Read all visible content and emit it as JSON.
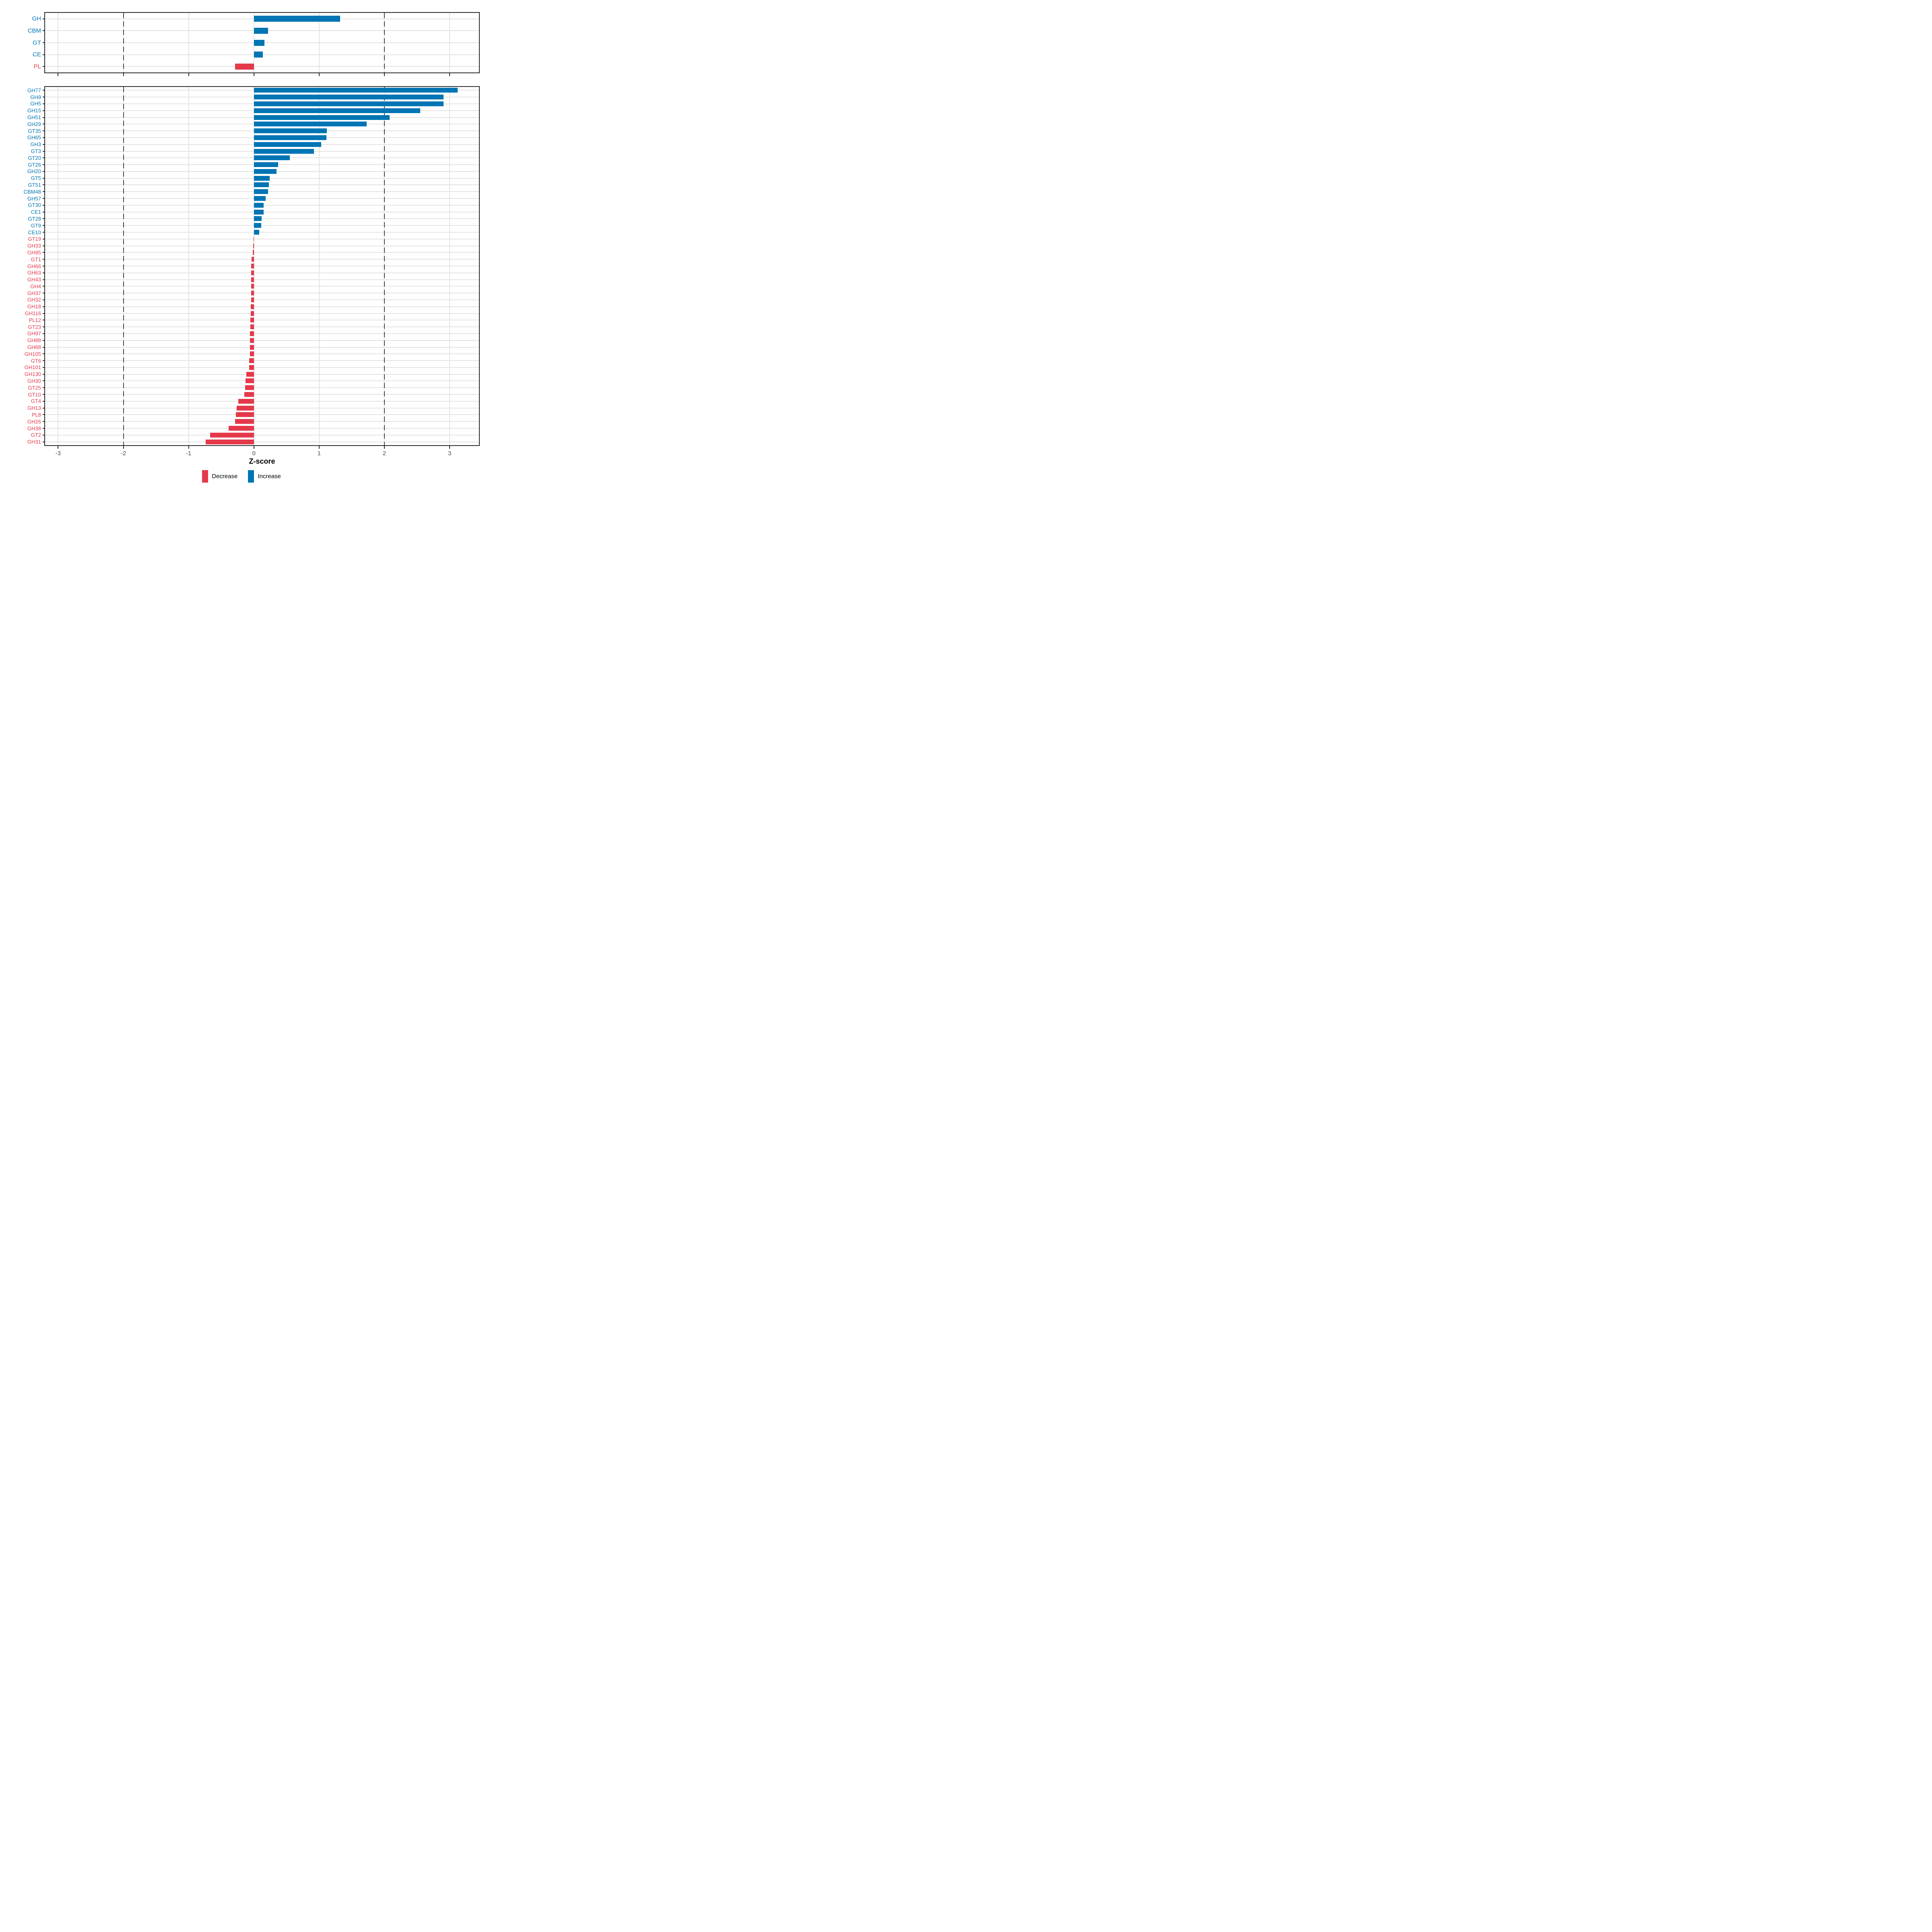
{
  "figure": {
    "xlabel": "Z-score",
    "axis": {
      "min": -3.2,
      "max": 3.45,
      "ticks": [
        -3,
        -2,
        -1,
        0,
        1,
        2,
        3
      ],
      "dashed_ticks": [
        -2,
        2
      ],
      "grid": "on"
    },
    "legend": {
      "position": "bottom-center",
      "items": [
        {
          "label": "Decrease",
          "color": "#e4394b"
        },
        {
          "label": "Increase",
          "color": "#0075b4"
        }
      ]
    },
    "colors": {
      "increase": "#0075b4",
      "decrease": "#e4394b",
      "grid": "#e4e4e4",
      "dashed_line": "#474747",
      "tick_text": "#4d4d4d",
      "panel_border": "#2b2b2b"
    }
  },
  "chart_data": [
    {
      "type": "bar",
      "orientation": "horizontal",
      "title": "",
      "xlabel": "Z-score",
      "ylabel": "",
      "xlim": [
        -3.2,
        3.45
      ],
      "categories": [
        "GH",
        "CBM",
        "GT",
        "CE",
        "PL"
      ],
      "values": [
        1.32,
        0.22,
        0.16,
        0.14,
        -0.29
      ]
    },
    {
      "type": "bar",
      "orientation": "horizontal",
      "title": "",
      "xlabel": "Z-score",
      "ylabel": "",
      "xlim": [
        -3.2,
        3.45
      ],
      "categories": [
        "GH77",
        "GH9",
        "GH5",
        "GH15",
        "GH51",
        "GH29",
        "GT35",
        "GH65",
        "GH3",
        "GT3",
        "GT20",
        "GT26",
        "GH20",
        "GT5",
        "GT51",
        "CBM48",
        "GH57",
        "GT30",
        "CE1",
        "GT28",
        "GT9",
        "CE10",
        "GT19",
        "GH33",
        "GH95",
        "GT1",
        "GH66",
        "GH63",
        "GH43",
        "GH4",
        "GH37",
        "GH32",
        "GH18",
        "GH116",
        "PL12",
        "GT23",
        "GH97",
        "GH88",
        "GH68",
        "GH105",
        "GT6",
        "GH101",
        "GH130",
        "GH30",
        "GT25",
        "GT10",
        "GT4",
        "GH13",
        "PL8",
        "GH26",
        "GH38",
        "GT2",
        "GH31"
      ],
      "values": [
        3.12,
        2.91,
        2.91,
        2.55,
        2.08,
        1.73,
        1.12,
        1.11,
        1.03,
        0.92,
        0.55,
        0.37,
        0.35,
        0.24,
        0.23,
        0.22,
        0.18,
        0.15,
        0.15,
        0.12,
        0.11,
        0.08,
        -0.005,
        -0.01,
        -0.015,
        -0.038,
        -0.039,
        -0.04,
        -0.041,
        -0.042,
        -0.043,
        -0.044,
        -0.045,
        -0.046,
        -0.055,
        -0.056,
        -0.057,
        -0.058,
        -0.059,
        -0.06,
        -0.07,
        -0.072,
        -0.115,
        -0.125,
        -0.135,
        -0.145,
        -0.24,
        -0.265,
        -0.275,
        -0.29,
        -0.39,
        -0.67,
        -0.74
      ]
    }
  ]
}
